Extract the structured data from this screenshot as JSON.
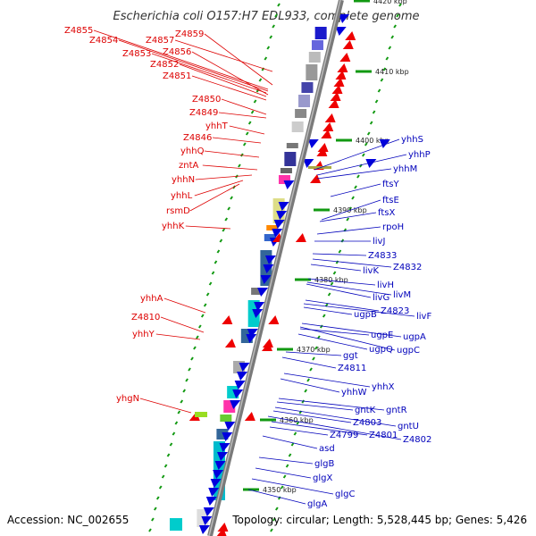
{
  "title": "Escherichia coli O157:H7 EDL933, complete genome",
  "footer": {
    "accession": "Accession: NC_002655",
    "info": "Topology: circular; Length: 5,528,445 bp; Genes: 5,426"
  },
  "colors": {
    "forward_gene": "#ee0000",
    "reverse_gene": "#0000dd",
    "red_label": "#dd0000",
    "blue_label": "#0000bb",
    "backbone": "#888888",
    "tick": "#008800"
  },
  "kbp_markers": [
    "4420 kbp",
    "4410 kbp",
    "4400 kbp",
    "4390 kbp",
    "4380 kbp",
    "4370 kbp",
    "4360 kbp",
    "4350 kbp"
  ],
  "left_labels": [
    "Z4855",
    "Z4854",
    "Z4857",
    "Z4859",
    "Z4853",
    "Z4856",
    "Z4852",
    "Z4851",
    "Z4850",
    "Z4849",
    "yhhT",
    "Z4846",
    "yhhQ",
    "zntA",
    "yhhN",
    "yhhL",
    "rsmD",
    "yhhK",
    "yhhA",
    "Z4810",
    "yhhY",
    "yhgN"
  ],
  "right_labels": [
    "yhhS",
    "yhhP",
    "yhhM",
    "ftsY",
    "ftsE",
    "ftsX",
    "rpoH",
    "livJ",
    "Z4833",
    "livK",
    "Z4832",
    "livH",
    "livG",
    "livM",
    "ugpB",
    "Z4823",
    "livF",
    "ugpE",
    "ugpA",
    "ugpQ",
    "ugpC",
    "ggt",
    "Z4811",
    "yhhX",
    "yhhW",
    "gntK",
    "gntR",
    "Z4803",
    "gntU",
    "Z4799",
    "Z4801",
    "Z4802",
    "asd",
    "glgB",
    "glgX",
    "glgC",
    "glgA"
  ]
}
